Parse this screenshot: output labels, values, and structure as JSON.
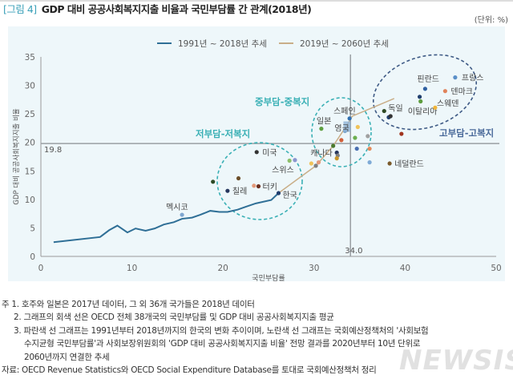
{
  "header": {
    "figure_tag": "[그림 4]",
    "title": "GDP 대비 공공사회복지지출 비율과 국민부담률 간 관계(2018년)",
    "unit": "(단위: %)"
  },
  "chart_data": {
    "type": "scatter",
    "xlabel": "국민부담률",
    "ylabel": "GDP 대비 공공사회복지지출 비율",
    "xlim": [
      0,
      50
    ],
    "ylim": [
      0,
      35
    ],
    "xticks": [
      "0",
      "10",
      "20",
      "30",
      "40",
      "50"
    ],
    "yticks": [
      "0",
      "5",
      "10",
      "15",
      "20",
      "25",
      "30",
      "35"
    ],
    "legend_position": "top-center",
    "reference_lines": {
      "oecd_avg_x": 34.0,
      "oecd_avg_x_label": "34.0",
      "oecd_avg_y": 19.8,
      "oecd_avg_y_label": "19.8",
      "color": "#9a9fa3"
    },
    "series": [
      {
        "name": "1991년 ~ 2018년 추세",
        "color": "#2f6f96",
        "points": [
          [
            1.4,
            2.5
          ],
          [
            6.5,
            3.4
          ],
          [
            7.5,
            4.6
          ],
          [
            8.4,
            5.4
          ],
          [
            9.5,
            4.2
          ],
          [
            10.4,
            4.9
          ],
          [
            11.5,
            4.5
          ],
          [
            12.5,
            4.9
          ],
          [
            13.5,
            5.6
          ],
          [
            14.6,
            6.0
          ],
          [
            15.5,
            6.6
          ],
          [
            16.6,
            6.8
          ],
          [
            17.5,
            7.3
          ],
          [
            18.6,
            8.0
          ],
          [
            19.6,
            7.8
          ],
          [
            20.5,
            7.8
          ],
          [
            21.6,
            8.2
          ],
          [
            22.5,
            8.7
          ],
          [
            23.6,
            9.3
          ],
          [
            25.3,
            9.9
          ],
          [
            26.1,
            11.1
          ]
        ]
      },
      {
        "name": "2019년 ~ 2060년 추세",
        "color": "#c9ae88",
        "points": [
          [
            26.1,
            11.1
          ],
          [
            30.2,
            15.9
          ],
          [
            32.1,
            19.4
          ],
          [
            33.6,
            23.0
          ],
          [
            34.2,
            24.6
          ],
          [
            38.8,
            27.7
          ]
        ]
      }
    ],
    "countries": [
      {
        "label": "멕시코",
        "x": 15.5,
        "y": 7.3,
        "color": "#7ea6d0",
        "lx": -20,
        "ly": -10
      },
      {
        "label": "칠레",
        "x": 20.5,
        "y": 11.5,
        "color": "#26375e",
        "lx": 6,
        "ly": 0
      },
      {
        "label": "터키",
        "x": 23.9,
        "y": 12.3,
        "color": "#6b2e1e",
        "lx": 5,
        "ly": 0
      },
      {
        "label": "",
        "x": 23.4,
        "y": 12.4,
        "color": "#e49a7a"
      },
      {
        "label": "",
        "x": 18.9,
        "y": 13.1,
        "color": "#2e4a25"
      },
      {
        "label": "",
        "x": 21.7,
        "y": 13.7,
        "color": "#6b4e2a"
      },
      {
        "label": "한국",
        "x": 26.1,
        "y": 11.1,
        "color": "#1f3e6e",
        "lx": 5,
        "ly": 2
      },
      {
        "label": "미국",
        "x": 23.7,
        "y": 18.3,
        "color": "#333",
        "lx": 7,
        "ly": 0
      },
      {
        "label": "스위스",
        "x": 27.3,
        "y": 16.8,
        "color": "#8dbf6a",
        "lx": -22,
        "ly": 11
      },
      {
        "label": "",
        "x": 27.9,
        "y": 16.9,
        "color": "#8a95cf"
      },
      {
        "label": "",
        "x": 29.7,
        "y": 16.3,
        "color": "#f0c35a"
      },
      {
        "label": "",
        "x": 30.5,
        "y": 16.5,
        "color": "#e49a7a"
      },
      {
        "label": "",
        "x": 30.2,
        "y": 15.9,
        "color": "#808080"
      },
      {
        "label": "일본",
        "x": 30.8,
        "y": 22.4,
        "color": "#5d9e3f",
        "lx": -6,
        "ly": -10
      },
      {
        "label": "스페인",
        "x": 33.9,
        "y": 24.2,
        "color": "#2f6fb0",
        "lx": -20,
        "ly": -10
      },
      {
        "label": "영국",
        "x": 33.4,
        "y": 22.0,
        "color": "#7aa6cc",
        "lx": -13,
        "ly": -4,
        "highlight": true
      },
      {
        "label": "캐나다",
        "x": 32.5,
        "y": 18.2,
        "color": "#26375e",
        "lx": -33,
        "ly": 0
      },
      {
        "label": "",
        "x": 34.8,
        "y": 22.7,
        "color": "#f0c35a"
      },
      {
        "label": "",
        "x": 34.5,
        "y": 20.8,
        "color": "#6bae4f"
      },
      {
        "label": "",
        "x": 35.9,
        "y": 21.1,
        "color": "#a0a0a0"
      },
      {
        "label": "",
        "x": 33.0,
        "y": 20.4,
        "color": "#d2603a"
      },
      {
        "label": "",
        "x": 32.1,
        "y": 19.4,
        "color": "#4a7a2e"
      },
      {
        "label": "",
        "x": 32.6,
        "y": 17.7,
        "color": "#808080"
      },
      {
        "label": "",
        "x": 32.5,
        "y": 17.2,
        "color": "#c9962a"
      },
      {
        "label": "",
        "x": 34.7,
        "y": 18.9,
        "color": "#4a6fb0"
      },
      {
        "label": "",
        "x": 36.1,
        "y": 18.9,
        "color": "#e58a5a"
      },
      {
        "label": "",
        "x": 36.1,
        "y": 16.5,
        "color": "#7eaad6"
      },
      {
        "label": "네덜란드",
        "x": 38.3,
        "y": 16.3,
        "color": "#7a5a2a",
        "lx": 6,
        "ly": 0
      },
      {
        "label": "",
        "x": 39.6,
        "y": 21.5,
        "color": "#a0341e"
      },
      {
        "label": "독일",
        "x": 37.7,
        "y": 25.5,
        "color": "#2e4a25",
        "lx": 5,
        "ly": -4
      },
      {
        "label": "",
        "x": 38.2,
        "y": 24.4,
        "color": "#1f3e6e"
      },
      {
        "label": "",
        "x": 38.4,
        "y": 24.6,
        "color": "#333"
      },
      {
        "label": "핀란드",
        "x": 42.2,
        "y": 29.4,
        "color": "#2f5fa0",
        "lx": -10,
        "ly": -13
      },
      {
        "label": "",
        "x": 41.6,
        "y": 28.0,
        "color": "#1f3e6e"
      },
      {
        "label": "이탈리아",
        "x": 41.7,
        "y": 27.2,
        "color": "#5d9e3f",
        "lx": -16,
        "ly": 12
      },
      {
        "label": "프랑스",
        "x": 45.5,
        "y": 31.4,
        "color": "#5a8fc8",
        "lx": 8,
        "ly": 0
      },
      {
        "label": "덴마크",
        "x": 44.4,
        "y": 29.0,
        "color": "#e0825a",
        "lx": 7,
        "ly": 0
      },
      {
        "label": "스웨덴",
        "x": 43.3,
        "y": 26.1,
        "color": "#f0b53a",
        "lx": 2,
        "ly": -6
      }
    ],
    "annotations": [
      {
        "text": "저부담-저복지",
        "color": "#3ab0b5"
      },
      {
        "text": "중부담-중복지",
        "color": "#3ab0b5"
      },
      {
        "text": "고부담-고복지",
        "color": "#4a6a9a"
      }
    ]
  },
  "notes": [
    "주 1. 호주와 일본은 2017년 데이터, 그 외 36개 국가들은 2018년 데이터",
    "2. 그래프의 회색 선은 OECD 전체 38개국의 국민부담률 및 GDP 대비 공공사회복지지출 평균",
    "3. 파란색 선 그래프는 1991년부터 2018년까지의 한국의 변화 추이이며, 노란색 선 그래프는 국회예산정책처의 '사회보험",
    "수지균형 국민부담률'과 사회보장위원회의 'GDP 대비 공공사회복지지출 비율' 전망 결과를 2020년부터 10년 단위로",
    "2060년까지 연결한 추세"
  ],
  "source": "자료: OECD Revenue Statistics와 OECD Social Expenditure Database를 토대로 국회예산정책처 정리",
  "watermark": "NEWSIS"
}
